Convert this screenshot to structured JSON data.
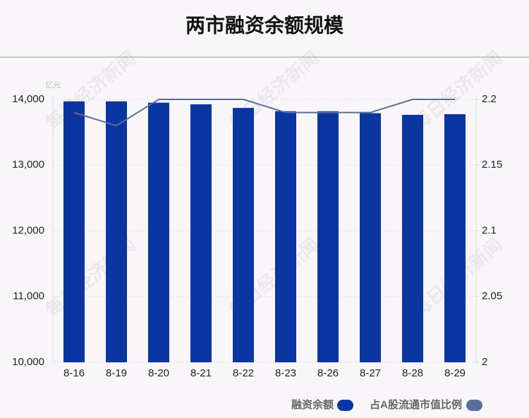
{
  "chart_data": {
    "type": "bar",
    "title": "两市融资余额规模",
    "y_unit": "亿元",
    "watermark": "每日经济新闻",
    "categories": [
      "8-16",
      "8-19",
      "8-20",
      "8-21",
      "8-22",
      "8-23",
      "8-26",
      "8-27",
      "8-28",
      "8-29"
    ],
    "series": [
      {
        "name": "融资余额",
        "type": "bar",
        "color": "#0b35a1",
        "values": [
          13970,
          13970,
          13950,
          13925,
          13870,
          13820,
          13820,
          13790,
          13765,
          13775
        ]
      },
      {
        "name": "占A股流通市值比例",
        "type": "line",
        "axis": "y2",
        "color": "#5a6e9a",
        "values": [
          2.19,
          2.18,
          2.2,
          2.2,
          2.2,
          2.19,
          2.19,
          2.19,
          2.2,
          2.2
        ]
      }
    ],
    "ylim": [
      10000,
      14000
    ],
    "yticks": [
      {
        "value": 10000,
        "label": "10,000"
      },
      {
        "value": 11000,
        "label": "11,000"
      },
      {
        "value": 12000,
        "label": "12,000"
      },
      {
        "value": 13000,
        "label": "13,000"
      },
      {
        "value": 14000,
        "label": "14,000"
      }
    ],
    "y2lim": [
      2,
      2.2
    ],
    "y2ticks": [
      2,
      2.05,
      2.1,
      2.15,
      2.2
    ],
    "grid": true
  }
}
